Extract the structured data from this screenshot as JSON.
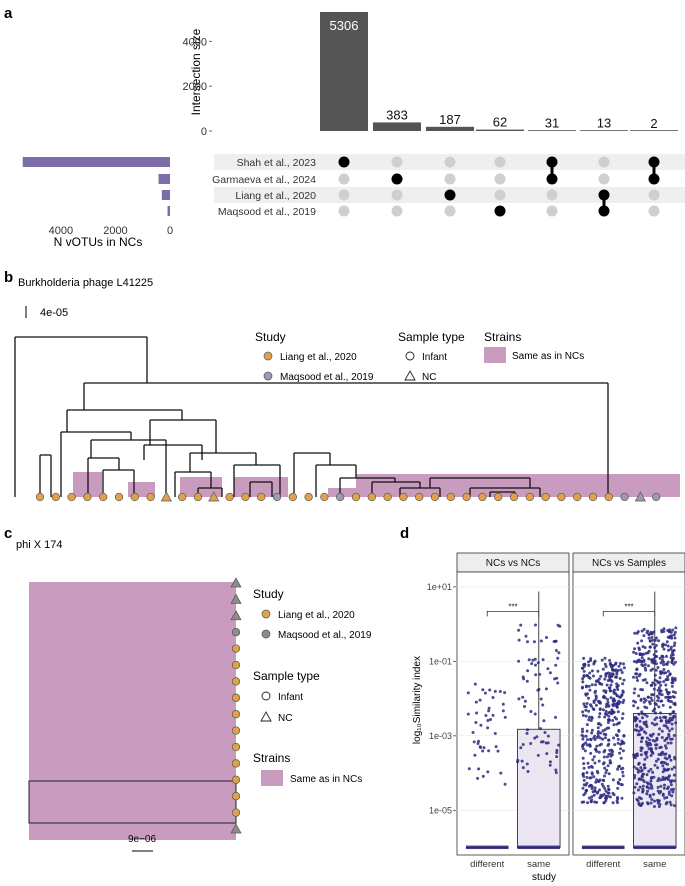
{
  "panels": {
    "a": "a",
    "b": "b",
    "c": "c",
    "d": "d"
  },
  "chart_data": [
    {
      "type": "upset",
      "ylabel": "Intersection size",
      "yticks": [
        0,
        2000,
        4000
      ],
      "ylim": [
        0,
        5306
      ],
      "intersections": [
        {
          "value": 5306,
          "label": "5306",
          "members": [
            0
          ]
        },
        {
          "value": 383,
          "label": "383",
          "members": [
            1
          ]
        },
        {
          "value": 187,
          "label": "187",
          "members": [
            2
          ]
        },
        {
          "value": 62,
          "label": "62",
          "members": [
            3
          ]
        },
        {
          "value": 31,
          "label": "31",
          "members": [
            0,
            1
          ]
        },
        {
          "value": 13,
          "label": "13",
          "members": [
            2,
            3
          ]
        },
        {
          "value": 2,
          "label": "2",
          "members": [
            0,
            1
          ]
        }
      ],
      "sets": [
        {
          "name": "Shah et al., 2023",
          "size": 5400
        },
        {
          "name": "Garmaeva et al., 2024",
          "size": 420
        },
        {
          "name": "Liang et al., 2020",
          "size": 300
        },
        {
          "name": "Maqsood et al., 2019",
          "size": 90
        }
      ],
      "set_axis_label": "N vOTUs in NCs",
      "set_ticks": [
        4000,
        2000,
        0
      ],
      "set_xlim": [
        0,
        5500
      ],
      "bar_color": "#555555",
      "set_color": "#7c6ca8"
    },
    {
      "type": "tree",
      "title": "Burkholderia phage L41225",
      "scale_label": "4e-05",
      "legend": {
        "study_title": "Study",
        "studies": [
          {
            "name": "Liang et al., 2020",
            "color": "#e0a14a"
          },
          {
            "name": "Maqsood et al., 2019",
            "color": "#9a9ab8"
          }
        ],
        "sample_title": "Sample type",
        "samples": [
          "Infant",
          "NC"
        ],
        "strain_title": "Strains",
        "strain_label": "Same as in NCs",
        "strain_color": "#c99bbf"
      },
      "tips": [
        "L",
        "L",
        "L",
        "L",
        "L",
        "L",
        "L",
        "L",
        "Lt",
        "L",
        "L",
        "Lt",
        "L",
        "L",
        "L",
        "M",
        "L",
        "L",
        "L",
        "M",
        "L",
        "L",
        "L",
        "L",
        "L",
        "L",
        "L",
        "L",
        "L",
        "L",
        "L",
        "L",
        "L",
        "L",
        "L",
        "L",
        "L",
        "M",
        "Mt",
        "M"
      ]
    },
    {
      "type": "tree",
      "title": "phi X 174",
      "scale_label": "9e−06",
      "legend": {
        "study_title": "Study",
        "studies": [
          {
            "name": "Liang et al., 2020",
            "color": "#e0a14a"
          },
          {
            "name": "Maqsood et al., 2019",
            "color": "#8c8c8c"
          }
        ],
        "sample_title": "Sample type",
        "samples": [
          "Infant",
          "NC"
        ],
        "strain_title": "Strains",
        "strain_label": "Same as in NCs",
        "strain_color": "#c99bbf"
      },
      "tips": [
        "Mt",
        "Mt",
        "Mt",
        "M",
        "L",
        "L",
        "L",
        "L",
        "L",
        "L",
        "L",
        "L",
        "L",
        "L",
        "L",
        "Mt"
      ]
    },
    {
      "type": "box-jitter",
      "ylabel": "log₁₀Similarity index",
      "xlabel": "study",
      "yscale": "log10",
      "ylim": [
        1e-06,
        10
      ],
      "yticks": [
        "1e+01",
        "1e-01",
        "1e-03",
        "1e-05"
      ],
      "facets": [
        {
          "name": "NCs vs NCs",
          "groups": [
            {
              "name": "different",
              "q1": 1e-06,
              "median": 1e-06,
              "q3": 1e-06
            },
            {
              "name": "same",
              "q1": 1e-06,
              "median": 1e-06,
              "q3": 0.0015
            }
          ],
          "significance": "***"
        },
        {
          "name": "NCs vs Samples",
          "groups": [
            {
              "name": "different",
              "q1": 1e-06,
              "median": 1e-06,
              "q3": 1e-06
            },
            {
              "name": "same",
              "q1": 1e-06,
              "median": 1e-06,
              "q3": 0.004
            }
          ],
          "significance": "***"
        }
      ],
      "point_color": "#2b2a80",
      "box_fill": "#ece6f2"
    }
  ]
}
